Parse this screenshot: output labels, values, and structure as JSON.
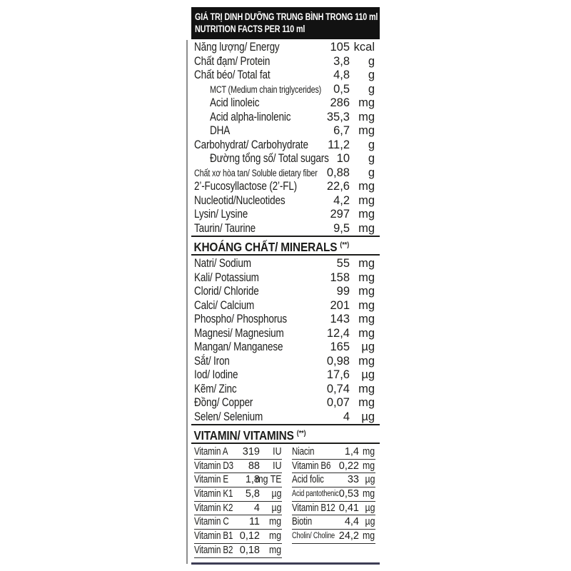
{
  "header": {
    "line1": "GIÁ TRỊ DINH DƯỠNG TRUNG BÌNH TRONG 110 ml",
    "line2": "NUTRITION FACTS PER 110 ml"
  },
  "main_rows": [
    {
      "label": "Năng lượng/ Energy",
      "value": "105",
      "unit": "kcal"
    },
    {
      "label": "Chất đạm/ Protein",
      "value": "3,8",
      "unit": "g"
    },
    {
      "label": "Chất béo/ Total fat",
      "value": "4,8",
      "unit": "g"
    },
    {
      "label": "MCT (Medium chain triglycerides)",
      "value": "0,5",
      "unit": "g",
      "variant": "indent small"
    },
    {
      "label": "Acid linoleic",
      "value": "286",
      "unit": "mg",
      "variant": "indent"
    },
    {
      "label": "Acid alpha-linolenic",
      "value": "35,3",
      "unit": "mg",
      "variant": "indent"
    },
    {
      "label": "DHA",
      "value": "6,7",
      "unit": "mg",
      "variant": "indent"
    },
    {
      "label": "Carbohydrat/ Carbohydrate",
      "value": "11,2",
      "unit": "g"
    },
    {
      "label": "Đường tổng số/ Total sugars",
      "value": "10",
      "unit": "g",
      "variant": "indent"
    },
    {
      "label": "Chất xơ hòa tan/ Soluble dietary fiber",
      "value": "0,88",
      "unit": "g",
      "variant": "small"
    },
    {
      "label": "2’-Fucosyllactose (2’-FL)",
      "value": "22,6",
      "unit": "mg"
    },
    {
      "label": "Nucleotid/Nucleotides",
      "value": "4,2",
      "unit": "mg"
    },
    {
      "label": "Lysin/ Lysine",
      "value": "297",
      "unit": "mg"
    },
    {
      "label": "Taurin/ Taurine",
      "value": "9,5",
      "unit": "mg"
    }
  ],
  "minerals": {
    "heading": "KHOÁNG CHẤT/ MINERALS",
    "note": "(**)",
    "rows": [
      {
        "label": "Natri/ Sodium",
        "value": "55",
        "unit": "mg"
      },
      {
        "label": "Kali/ Potassium",
        "value": "158",
        "unit": "mg"
      },
      {
        "label": "Clorid/ Chloride",
        "value": "99",
        "unit": "mg"
      },
      {
        "label": "Calci/ Calcium",
        "value": "201",
        "unit": "mg"
      },
      {
        "label": "Phospho/ Phosphorus",
        "value": "143",
        "unit": "mg"
      },
      {
        "label": "Magnesi/ Magnesium",
        "value": "12,4",
        "unit": "mg"
      },
      {
        "label": "Mangan/ Manganese",
        "value": "165",
        "unit": "µg"
      },
      {
        "label": "Sắt/ Iron",
        "value": "0,98",
        "unit": "mg"
      },
      {
        "label": "Iod/ Iodine",
        "value": "17,6",
        "unit": "µg"
      },
      {
        "label": "Kẽm/ Zinc",
        "value": "0,74",
        "unit": "mg"
      },
      {
        "label": "Đồng/ Copper",
        "value": "0,07",
        "unit": "mg"
      },
      {
        "label": "Selen/ Selenium",
        "value": "4",
        "unit": "µg"
      }
    ]
  },
  "vitamins": {
    "heading": "VITAMIN/ VITAMINS",
    "note": "(**)",
    "left": [
      {
        "label": "Vitamin A",
        "value": "319",
        "unit": "IU"
      },
      {
        "label": "Vitamin D3",
        "value": "88",
        "unit": "IU"
      },
      {
        "label": "Vitamin E",
        "value": "1,8",
        "unit": "mg TE"
      },
      {
        "label": "Vitamin K1",
        "value": "5,8",
        "unit": "µg"
      },
      {
        "label": "Vitamin K2",
        "value": "4",
        "unit": "µg"
      },
      {
        "label": "Vitamin C",
        "value": "11",
        "unit": "mg"
      },
      {
        "label": "Vitamin B1",
        "value": "0,12",
        "unit": "mg"
      },
      {
        "label": "Vitamin B2",
        "value": "0,18",
        "unit": "mg"
      }
    ],
    "right": [
      {
        "label": "Niacin",
        "value": "1,4",
        "unit": "mg"
      },
      {
        "label": "Vitamin B6",
        "value": "0,22",
        "unit": "mg"
      },
      {
        "label": "Acid folic",
        "value": "33",
        "unit": "µg"
      },
      {
        "label": "Acid pantothenic",
        "value": "0,53",
        "unit": "mg",
        "variant": "small"
      },
      {
        "label": "Vitamin B12",
        "value": "0,41",
        "unit": "µg"
      },
      {
        "label": "Biotin",
        "value": "4,4",
        "unit": "µg"
      },
      {
        "label": "Cholin/ Choline",
        "value": "24,2",
        "unit": "mg",
        "variant": "small"
      }
    ]
  }
}
